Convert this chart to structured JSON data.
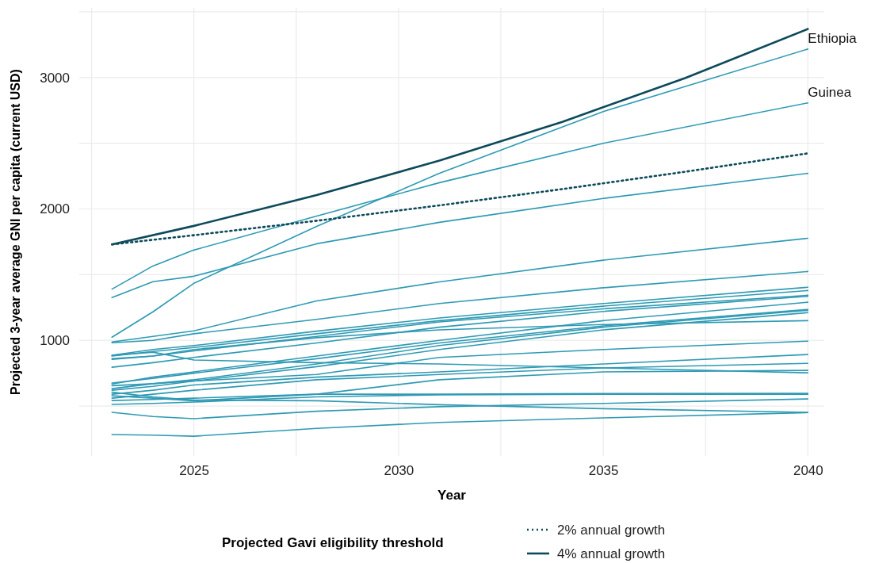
{
  "chart_data": {
    "type": "line",
    "x": [
      2023,
      2024,
      2025,
      2028,
      2031,
      2035,
      2040
    ],
    "xlim": [
      2022.2,
      2040.4
    ],
    "ylim": [
      120,
      3530
    ],
    "xticks": [
      {
        "value": 2022.5,
        "label": null
      },
      2025,
      {
        "value": 2027.5,
        "label": null
      },
      2030,
      {
        "value": 2032.5,
        "label": null
      },
      2035,
      {
        "value": 2037.5,
        "label": null
      },
      2040
    ],
    "yticks": [
      {
        "value": 500,
        "label": null
      },
      1000,
      {
        "value": 1500,
        "label": null
      },
      2000,
      {
        "value": 2500,
        "label": null
      },
      3000,
      {
        "value": 3500,
        "label": null
      }
    ],
    "xlabel": "Year",
    "ylabel": "Projected 3-year average GNI per capita (current USD)",
    "grid": true,
    "legend": "bottom",
    "legend_title": "Projected Gavi eligibility threshold",
    "series": [
      {
        "name": "Ethiopia",
        "color": "#2e9ab4",
        "values": [
          1024,
          1217,
          1434,
          1867,
          2271,
          2741,
          3217
        ]
      },
      {
        "name": "Guinea",
        "color": "#2e9ab4",
        "values": [
          1390,
          1566,
          1687,
          1946,
          2200,
          2500,
          2807
        ]
      },
      {
        "color": "#2e9ab4",
        "values": [
          1325,
          1446,
          1488,
          1735,
          1898,
          2080,
          2271
        ]
      },
      {
        "color": "#2e9ab4",
        "values": [
          988,
          1030,
          1072,
          1300,
          1445,
          1610,
          1777
        ]
      },
      {
        "color": "#2e9ab4",
        "values": [
          982,
          1000,
          1050,
          1160,
          1280,
          1400,
          1524
        ]
      },
      {
        "color": "#2e9ab4",
        "values": [
          886,
          930,
          960,
          1070,
          1170,
          1280,
          1404
        ]
      },
      {
        "color": "#2e9ab4",
        "values": [
          880,
          915,
          945,
          1050,
          1150,
          1260,
          1379
        ]
      },
      {
        "color": "#2e9ab4",
        "values": [
          886,
          910,
          850,
          830,
          820,
          790,
          753
        ]
      },
      {
        "color": "#2e9ab4",
        "values": [
          795,
          830,
          870,
          980,
          1100,
          1220,
          1335
        ]
      },
      {
        "color": "#2e9ab4",
        "values": [
          855,
          880,
          920,
          1030,
          1140,
          1240,
          1343
        ]
      },
      {
        "color": "#2e9ab4",
        "values": [
          668,
          720,
          760,
          880,
          1000,
          1150,
          1290
        ]
      },
      {
        "color": "#2e9ab4",
        "values": [
          675,
          710,
          750,
          860,
          980,
          1110,
          1235
        ]
      },
      {
        "color": "#2e9ab4",
        "values": [
          632,
          670,
          700,
          820,
          960,
          1100,
          1228
        ]
      },
      {
        "color": "#2e9ab4",
        "values": [
          620,
          650,
          690,
          800,
          930,
          1080,
          1211
        ]
      },
      {
        "color": "#2e9ab4",
        "values": [
          860,
          880,
          930,
          1020,
          1080,
          1120,
          1150
        ]
      },
      {
        "color": "#2e9ab4",
        "values": [
          655,
          670,
          690,
          740,
          870,
          930,
          994
        ]
      },
      {
        "color": "#2e9ab4",
        "values": [
          590,
          620,
          660,
          720,
          760,
          820,
          892
        ]
      },
      {
        "color": "#2e9ab4",
        "values": [
          560,
          590,
          620,
          700,
          740,
          790,
          825
        ]
      },
      {
        "color": "#2e9ab4",
        "values": [
          578,
          560,
          540,
          590,
          700,
          760,
          771
        ]
      },
      {
        "color": "#2e9ab4",
        "values": [
          542,
          550,
          560,
          590,
          590,
          595,
          596
        ]
      },
      {
        "color": "#2e9ab4",
        "values": [
          512,
          520,
          530,
          570,
          585,
          590,
          590
        ]
      },
      {
        "color": "#2e9ab4",
        "values": [
          605,
          570,
          545,
          540,
          510,
          480,
          452
        ]
      },
      {
        "color": "#2e9ab4",
        "values": [
          452,
          420,
          404,
          460,
          495,
          520,
          554
        ]
      },
      {
        "color": "#2e9ab4",
        "values": [
          283,
          278,
          270,
          330,
          375,
          410,
          450
        ]
      },
      {
        "name": "2% annual growth",
        "color": "#0d4a5a",
        "line_style": "dotted",
        "x": [
          2023,
          2025,
          2028,
          2031,
          2034,
          2037,
          2040
        ],
        "values": [
          1730,
          1800,
          1910,
          2027,
          2151,
          2283,
          2423
        ]
      },
      {
        "name": "4% annual growth",
        "color": "#0d4a5a",
        "line_style": "solid",
        "x": [
          2023,
          2025,
          2028,
          2031,
          2034,
          2037,
          2040
        ],
        "values": [
          1730,
          1871,
          2105,
          2368,
          2663,
          2996,
          3370
        ]
      }
    ]
  }
}
